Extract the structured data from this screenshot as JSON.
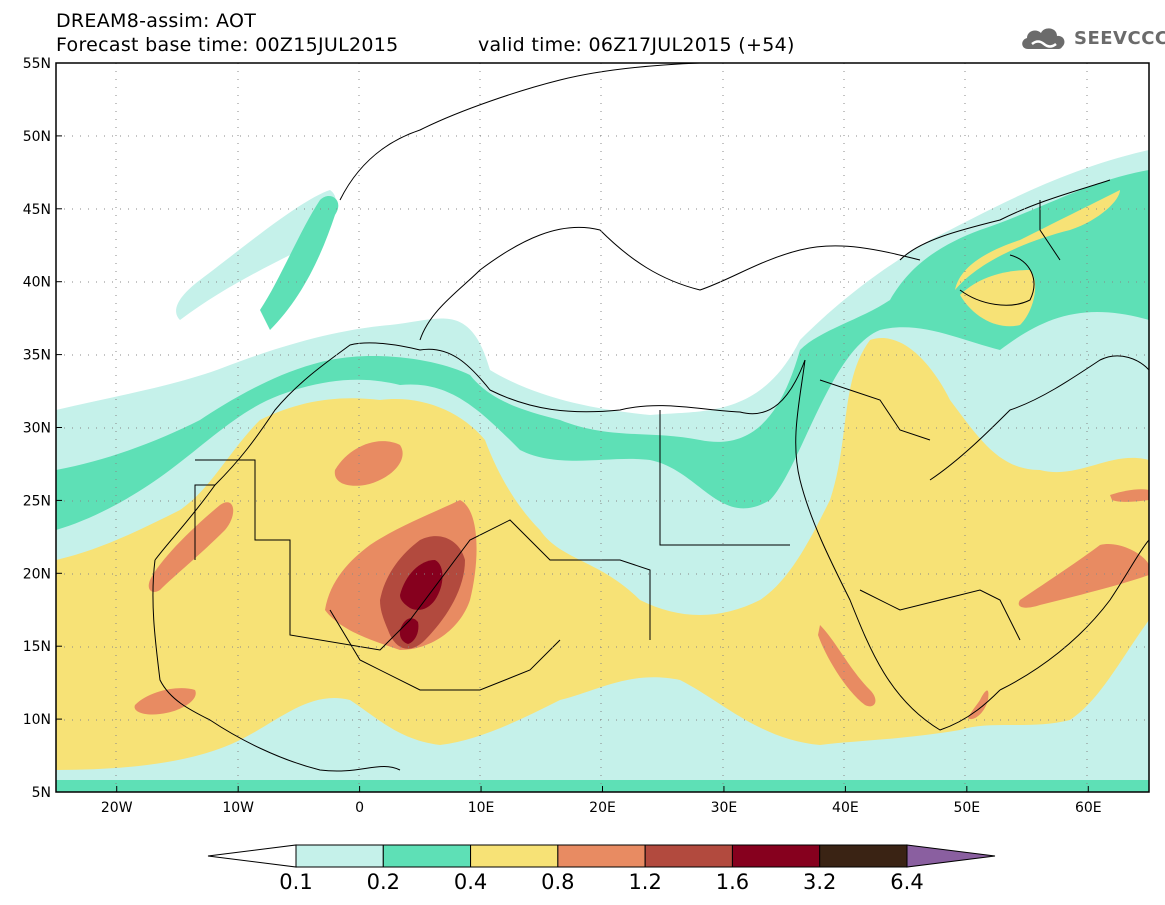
{
  "header": {
    "title_line1": "DREAM8-assim: AOT",
    "title_line2": "Forecast base time: 00Z15JUL2015",
    "valid_time": "valid time: 06Z17JUL2015 (+54)",
    "logo_text": "SEEVCCC",
    "logo_icon": "cloud-icon"
  },
  "map": {
    "lon_range": [
      -25,
      65
    ],
    "lat_range": [
      5,
      55
    ],
    "x_ticks": [
      "20W",
      "10W",
      "0",
      "10E",
      "20E",
      "30E",
      "40E",
      "50E",
      "60E"
    ],
    "y_ticks": [
      "55N",
      "50N",
      "45N",
      "40N",
      "35N",
      "30N",
      "25N",
      "20N",
      "15N",
      "10N",
      "5N"
    ],
    "grid": "dotted"
  },
  "colorbar": {
    "labels": [
      "0.1",
      "0.2",
      "0.4",
      "0.8",
      "1.2",
      "1.6",
      "3.2",
      "6.4"
    ],
    "colors": [
      "#ffffff",
      "#c5f1ea",
      "#5ee0b6",
      "#f7e276",
      "#e88b62",
      "#b24a3e",
      "#86001e",
      "#3a2314",
      "#8a5fa0"
    ]
  }
}
